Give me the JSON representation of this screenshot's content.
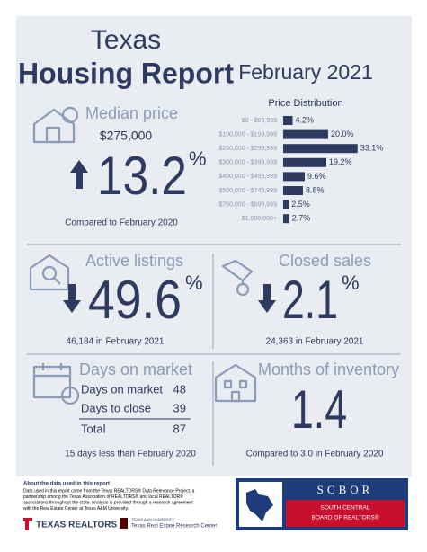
{
  "header": {
    "title_line1": "Texas",
    "title_line2": "Housing Report",
    "period": "February 2021"
  },
  "price_distribution": {
    "title": "Price Distribution",
    "categories": [
      "$0 - $99,999",
      "$100,000 - $199,999",
      "$200,000 - $299,999",
      "$300,000 - $399,999",
      "$400,000 - $499,999",
      "$500,000 - $749,999",
      "$750,000 - $999,999",
      "$1,000,000+"
    ],
    "values": [
      4.2,
      20.0,
      33.1,
      19.2,
      9.6,
      8.8,
      2.5,
      2.7
    ],
    "value_labels": [
      "4.2%",
      "20.0%",
      "33.1%",
      "19.2%",
      "9.6%",
      "8.8%",
      "2.5%",
      "2.7%"
    ],
    "color": "#2e3a5f"
  },
  "median_price": {
    "heading": "Median price",
    "price": "$275,000",
    "change": 13.2,
    "unit": "%",
    "note": "Compared to February 2020"
  },
  "active_listings": {
    "heading": "Active listings",
    "change": 49.6,
    "unit": "%",
    "note": "46,184 in February 2021"
  },
  "closed_sales": {
    "heading": "Closed sales",
    "change": 2.1,
    "unit": "%",
    "note": "24,363 in February 2021"
  },
  "days_on_market": {
    "heading": "Days on market",
    "rows": [
      [
        "Days on market",
        48
      ],
      [
        "Days to close",
        39
      ]
    ],
    "total": [
      "Total",
      87
    ],
    "note": "15 days less than February 2020"
  },
  "months_of_inventory": {
    "heading": "Months of inventory",
    "value": 1.4,
    "note": "Compared to 3.0 in February 2020"
  },
  "footer": {
    "about_heading": "About the data used in this report",
    "about_lines": [
      "Data used in this report come from the Texas REALTORS® Data Relevance Project, a",
      "partnership among the Texas Association of REALTORS® and local REALTOR®",
      "associations throughout the state. Analysis is provided through a research agreement",
      "with the Real Estate Center at Texas A&M University."
    ],
    "logo_left": "TEXAS REALTORS",
    "logo_mid_top": "TEXAS A&M UNIVERSITY",
    "logo_mid": "Texas Real Estate Research Center",
    "board_abbrev": "SCBOR",
    "board_line1": "SOUTH CENTRAL",
    "board_line2": "BOARD OF REALTORS®"
  }
}
